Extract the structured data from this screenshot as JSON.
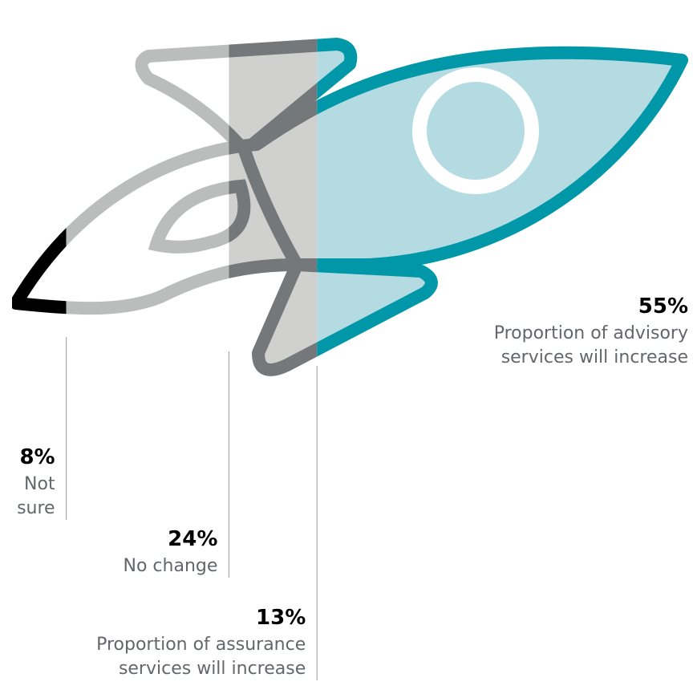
{
  "chart_data": {
    "type": "pictogram",
    "categories": [
      [
        "Not",
        "sure"
      ],
      [
        "No change"
      ],
      [
        "Proportion of assurance",
        "services will increase"
      ],
      [
        "Proportion of advisory",
        "services will increase"
      ]
    ],
    "values": [
      8,
      24,
      13,
      55
    ],
    "value_labels": [
      "8%",
      "24%",
      "13%",
      "55%"
    ],
    "colors": [
      "#000000",
      "#bbbcbc",
      "#75787b",
      "#0097a9"
    ],
    "fill_colors": [
      "#ffffff",
      "#ffffff",
      "#d0d0ce",
      "#b3dbe1"
    ]
  }
}
